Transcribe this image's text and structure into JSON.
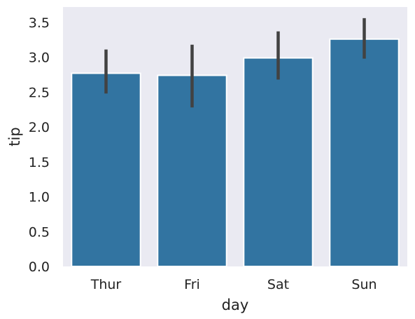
{
  "chart_data": {
    "type": "bar",
    "title": "",
    "xlabel": "day",
    "ylabel": "tip",
    "categories": [
      "Thur",
      "Fri",
      "Sat",
      "Sun"
    ],
    "values": [
      2.77,
      2.74,
      2.99,
      3.26
    ],
    "error_bars": [
      {
        "low": 2.48,
        "high": 3.11
      },
      {
        "low": 2.28,
        "high": 3.18
      },
      {
        "low": 2.68,
        "high": 3.37
      },
      {
        "low": 2.98,
        "high": 3.56
      }
    ],
    "ylim": [
      0,
      3.72
    ],
    "yticks": [
      "0.0",
      "0.5",
      "1.0",
      "1.5",
      "2.0",
      "2.5",
      "3.0",
      "3.5"
    ],
    "grid": false,
    "colors": {
      "bar": "#3274a1",
      "background": "#eaeaf2",
      "error_bar": "#424242",
      "text": "#222222"
    }
  }
}
